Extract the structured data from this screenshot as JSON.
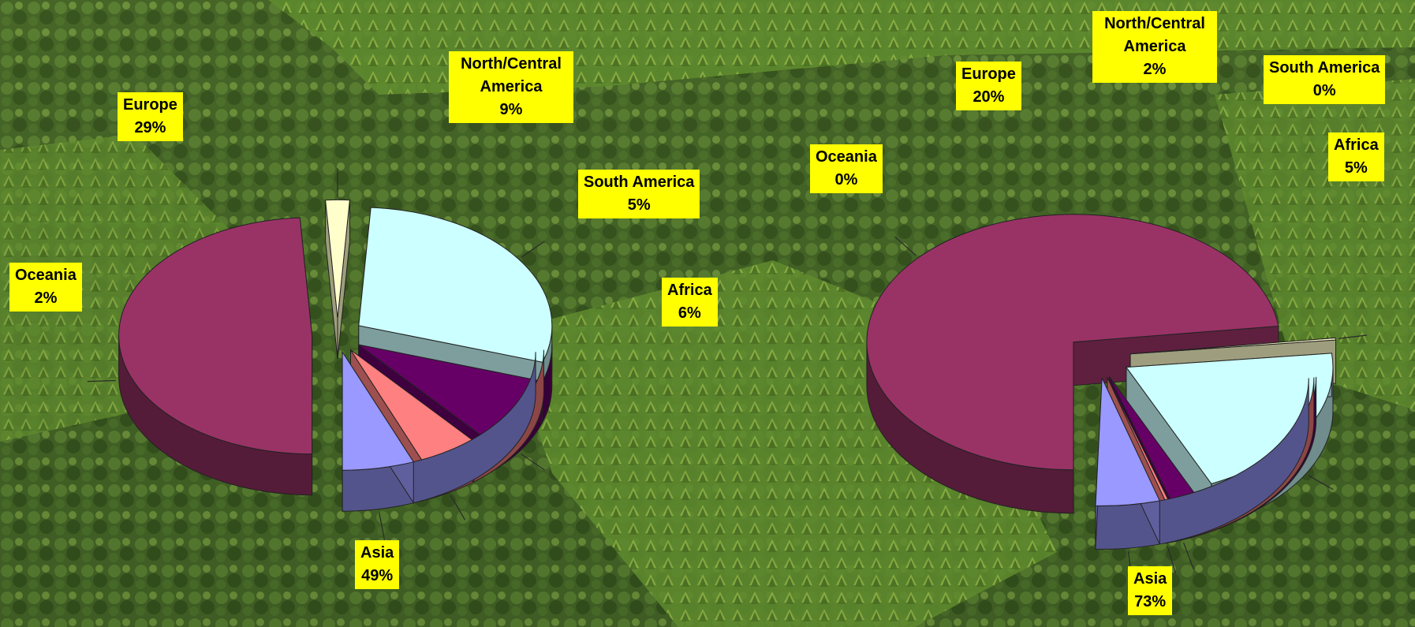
{
  "chart_data": [
    {
      "type": "pie",
      "style": "3d-exploded",
      "slices": [
        {
          "label": "Asia",
          "value": 49,
          "color": "#993366"
        },
        {
          "label": "Oceania",
          "value": 2,
          "color": "#ffffcc"
        },
        {
          "label": "Europe",
          "value": 29,
          "color": "#ccffff"
        },
        {
          "label": "North/Central America",
          "value": 9,
          "color": "#660066"
        },
        {
          "label": "South America",
          "value": 5,
          "color": "#ff8080"
        },
        {
          "label": "Africa",
          "value": 6,
          "color": "#9999ff"
        }
      ]
    },
    {
      "type": "pie",
      "style": "3d-exploded",
      "slices": [
        {
          "label": "Asia",
          "value": 73,
          "color": "#993366"
        },
        {
          "label": "Oceania",
          "value": 0,
          "color": "#ffffcc"
        },
        {
          "label": "Europe",
          "value": 20,
          "color": "#ccffff"
        },
        {
          "label": "North/Central America",
          "value": 2,
          "color": "#660066"
        },
        {
          "label": "South America",
          "value": 0,
          "color": "#ff8080"
        },
        {
          "label": "Africa",
          "value": 5,
          "color": "#9999ff"
        }
      ]
    }
  ],
  "labels": [
    [
      {
        "name": "Europe",
        "pct": "29%"
      },
      {
        "name": "North/Central America",
        "pct": "9%"
      },
      {
        "name": "South America",
        "pct": "5%"
      },
      {
        "name": "Africa",
        "pct": "6%"
      },
      {
        "name": "Oceania",
        "pct": "2%"
      },
      {
        "name": "Asia",
        "pct": "49%"
      }
    ],
    [
      {
        "name": "Europe",
        "pct": "20%"
      },
      {
        "name": "North/Central America",
        "pct": "2%"
      },
      {
        "name": "South America",
        "pct": "0%"
      },
      {
        "name": "Africa",
        "pct": "5%"
      },
      {
        "name": "Oceania",
        "pct": "0%"
      },
      {
        "name": "Asia",
        "pct": "73%"
      }
    ]
  ]
}
